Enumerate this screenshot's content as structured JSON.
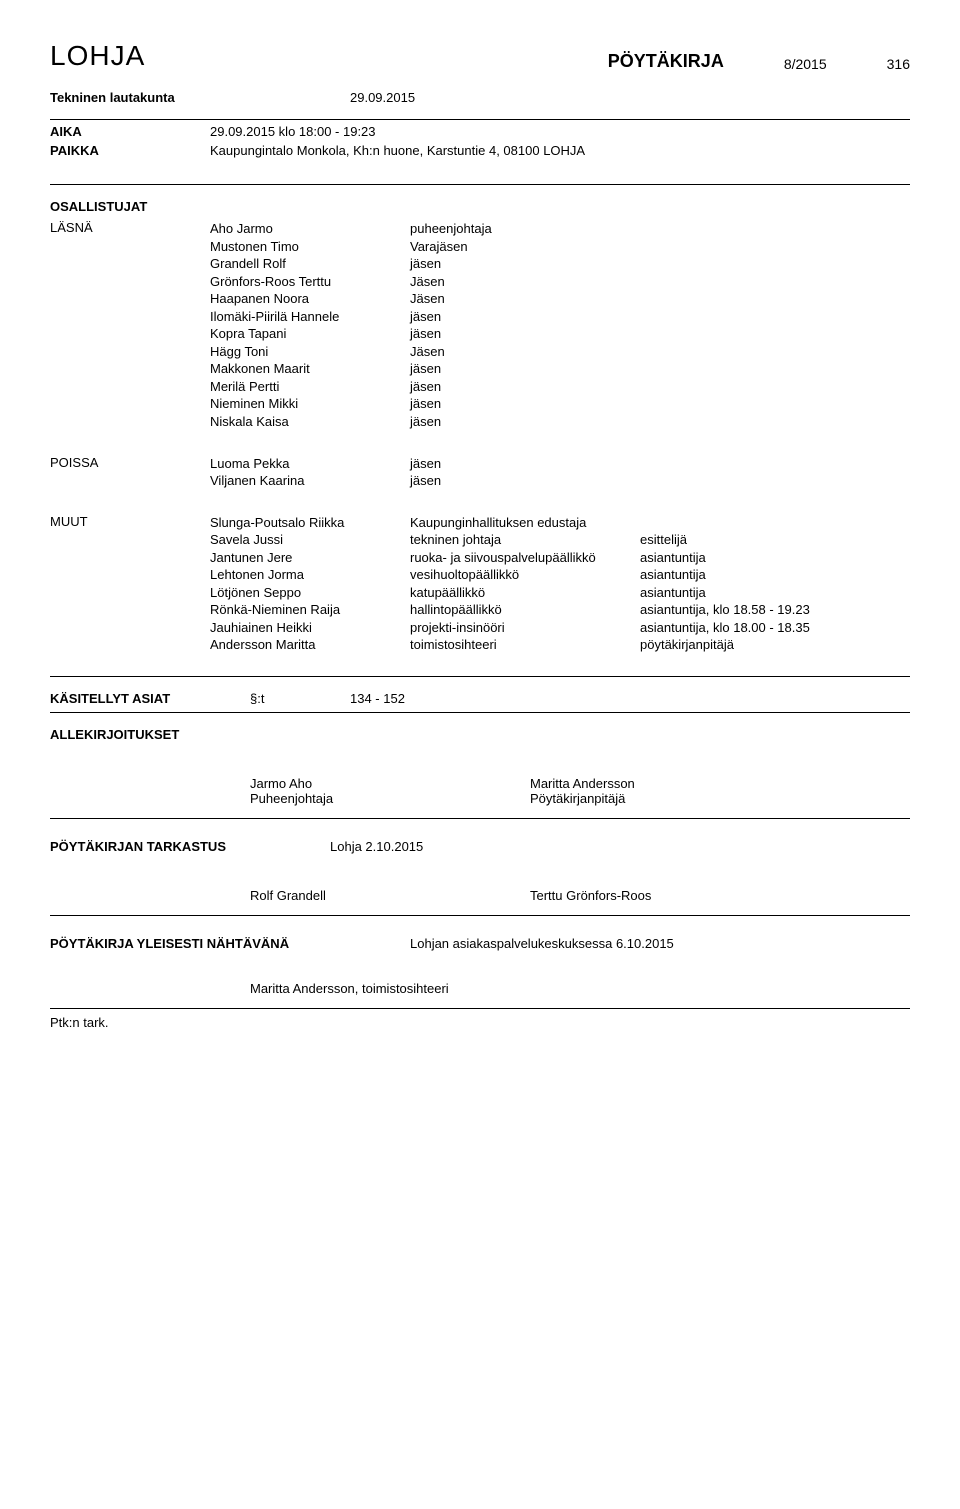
{
  "header": {
    "org": "LOHJA",
    "doc_type": "PÖYTÄKIRJA",
    "doc_num": "8/2015",
    "page": "316"
  },
  "meeting": {
    "board": "Tekninen lautakunta",
    "date": "29.09.2015"
  },
  "aika": {
    "label": "AIKA",
    "value": "29.09.2015 klo 18:00 - 19:23"
  },
  "paikka": {
    "label": "PAIKKA",
    "value": "Kaupungintalo Monkola, Kh:n huone, Karstuntie 4, 08100 LOHJA"
  },
  "osallistujat_label": "OSALLISTUJAT",
  "lasna": {
    "label": "LÄSNÄ",
    "rows": [
      {
        "name": "Aho  Jarmo",
        "role": "puheenjohtaja"
      },
      {
        "name": "Mustonen Timo",
        "role": "Varajäsen"
      },
      {
        "name": "Grandell Rolf",
        "role": "jäsen"
      },
      {
        "name": "Grönfors-Roos Terttu",
        "role": "Jäsen"
      },
      {
        "name": "Haapanen Noora",
        "role": "Jäsen"
      },
      {
        "name": "Ilomäki-Piirilä Hannele",
        "role": "jäsen"
      },
      {
        "name": "Kopra Tapani",
        "role": "jäsen"
      },
      {
        "name": "Hägg Toni",
        "role": "Jäsen"
      },
      {
        "name": "Makkonen Maarit",
        "role": "jäsen"
      },
      {
        "name": "Merilä  Pertti",
        "role": "jäsen"
      },
      {
        "name": "Nieminen Mikki",
        "role": "jäsen"
      },
      {
        "name": "Niskala Kaisa",
        "role": "jäsen"
      }
    ]
  },
  "poissa": {
    "label": "POISSA",
    "rows": [
      {
        "name": "Luoma Pekka",
        "role": "jäsen"
      },
      {
        "name": "Viljanen Kaarina",
        "role": "jäsen"
      }
    ]
  },
  "muut": {
    "label": "MUUT",
    "rows": [
      {
        "name": "Slunga-Poutsalo Riikka",
        "role": "Kaupunginhallituksen edustaja",
        "extra": ""
      },
      {
        "name": "Savela Jussi",
        "role": "tekninen johtaja",
        "extra": "esittelijä"
      },
      {
        "name": "Jantunen Jere",
        "role": "ruoka- ja siivouspalvelu­päällikkö",
        "extra": "asiantuntija"
      },
      {
        "name": "Lehtonen Jorma",
        "role": "vesihuoltopäällikkö",
        "extra": "asiantuntija"
      },
      {
        "name": "Lötjönen  Seppo",
        "role": "katupäällikkö",
        "extra": "asiantuntija"
      },
      {
        "name": "Rönkä-Nieminen  Raija",
        "role": "hallintopäällikkö",
        "extra": "asiantuntija, klo 18.58 - 19.23"
      },
      {
        "name": "Jauhiainen Heikki",
        "role": "projekti-insinööri",
        "extra": "asiantuntija, klo 18.00 - 18.35"
      },
      {
        "name": "Andersson Maritta",
        "role": "toimistosihteeri",
        "extra": "pöytäkirjanpitäjä"
      }
    ]
  },
  "kasitellyt": {
    "label": "KÄSITELLYT ASIAT",
    "t": "§:t",
    "range": "134 - 152"
  },
  "allekirj": {
    "label": "ALLEKIRJOITUKSET",
    "left_name": "Jarmo Aho",
    "left_title": "Puheenjohtaja",
    "right_name": "Maritta Andersson",
    "right_title": "Pöytäkirjanpitäjä"
  },
  "tarkastus": {
    "label": "PÖYTÄKIRJAN TARKASTUS",
    "place_date": "Lohja 2.10.2015",
    "left": "Rolf Grandell",
    "right": "Terttu Grönfors-Roos"
  },
  "nahtavana": {
    "label": "PÖYTÄKIRJA YLEISESTI NÄHTÄVÄNÄ",
    "value": "Lohjan asiakaspalvelukeskuksessa 6.10.2015"
  },
  "footer_sign": "Maritta Andersson, toimistosihteeri",
  "ptk": "Ptk:n tark."
}
